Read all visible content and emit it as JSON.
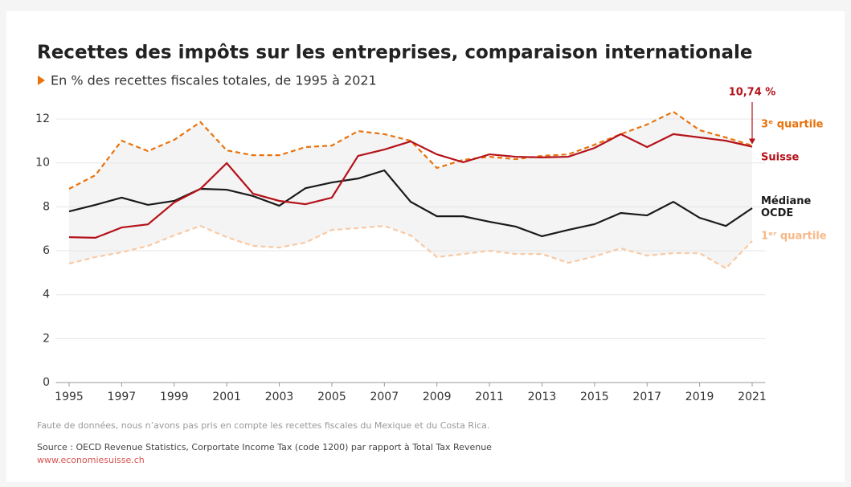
{
  "chart_data": {
    "type": "line",
    "title": "Recettes des impôts sur les entreprises, comparaison internationale",
    "subtitle": "En % des recettes fiscales totales, de 1995 à 2021",
    "x": [
      1995,
      1996,
      1997,
      1998,
      1999,
      2000,
      2001,
      2002,
      2003,
      2004,
      2005,
      2006,
      2007,
      2008,
      2009,
      2010,
      2011,
      2012,
      2013,
      2014,
      2015,
      2016,
      2017,
      2018,
      2019,
      2020,
      2021
    ],
    "series": [
      {
        "name": "3ᵉ quartile",
        "color": "#e8730c",
        "dash": true,
        "values": [
          8.82,
          9.44,
          11.01,
          10.54,
          11.05,
          11.86,
          10.57,
          10.35,
          10.35,
          10.72,
          10.79,
          11.45,
          11.31,
          11.01,
          9.77,
          10.14,
          10.28,
          10.17,
          10.32,
          10.39,
          10.83,
          11.31,
          11.75,
          12.33,
          11.49,
          11.16,
          10.79
        ]
      },
      {
        "name": "1ᵉʳ quartile",
        "color": "#f9c9a3",
        "dash": true,
        "values": [
          5.42,
          5.71,
          5.93,
          6.22,
          6.7,
          7.13,
          6.62,
          6.22,
          6.15,
          6.37,
          6.95,
          7.03,
          7.13,
          6.7,
          5.71,
          5.85,
          6.0,
          5.85,
          5.85,
          5.45,
          5.74,
          6.11,
          5.78,
          5.89,
          5.89,
          5.2,
          6.44
        ]
      },
      {
        "name": "Médiane OCDE",
        "color": "#1a1a1a",
        "dash": false,
        "values": [
          7.79,
          8.09,
          8.42,
          8.09,
          8.27,
          8.82,
          8.78,
          8.49,
          8.05,
          8.85,
          9.11,
          9.29,
          9.66,
          8.23,
          7.57,
          7.57,
          7.32,
          7.1,
          6.66,
          6.95,
          7.21,
          7.72,
          7.61,
          8.23,
          7.5,
          7.13,
          7.94
        ]
      },
      {
        "name": "Suisse",
        "color": "#b5121b",
        "dash": false,
        "values": [
          6.62,
          6.59,
          7.06,
          7.2,
          8.2,
          8.82,
          9.99,
          8.6,
          8.27,
          8.12,
          8.42,
          10.32,
          10.61,
          10.98,
          10.39,
          10.03,
          10.39,
          10.28,
          10.25,
          10.28,
          10.68,
          11.31,
          10.72,
          11.31,
          11.16,
          11.01,
          10.74
        ]
      }
    ],
    "band_color": "#f4f4f4",
    "annotation": {
      "text": "10,74 %",
      "x": 2021,
      "y": 10.74
    },
    "xlim": [
      1994.5,
      2021.5
    ],
    "xticks": [
      1995,
      1997,
      1999,
      2001,
      2003,
      2005,
      2007,
      2009,
      2011,
      2013,
      2015,
      2017,
      2019,
      2021
    ],
    "ylim": [
      0,
      12.5
    ],
    "yticks": [
      0,
      2,
      4,
      6,
      8,
      10,
      12
    ],
    "grid": true,
    "note": "Faute de données, nous n’avons pas pris en compte les recettes fiscales du Mexique et du Costa Rica.",
    "source": "Source : OECD Revenue Statistics, Corportate Income Tax (code 1200) par rapport à Total Tax Revenue",
    "url": "www.economiesuisse.ch"
  }
}
